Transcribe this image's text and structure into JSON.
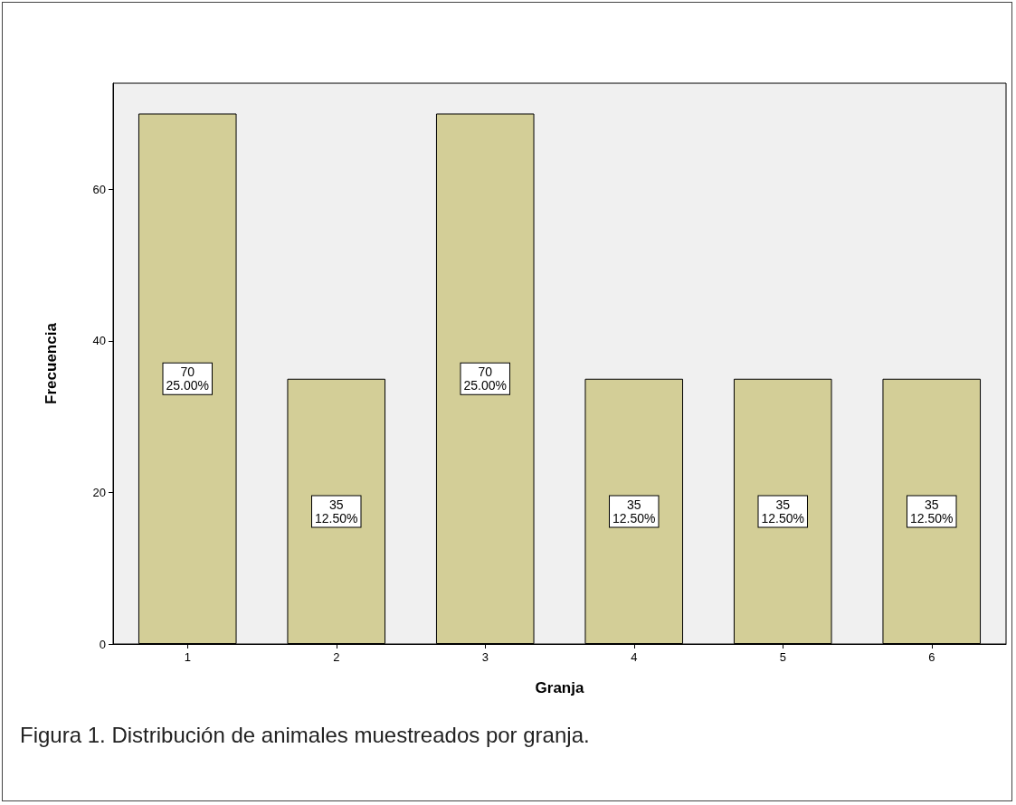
{
  "chart_data": {
    "type": "bar",
    "xlabel": "Granja",
    "ylabel": "Frecuencia",
    "categories": [
      "1",
      "2",
      "3",
      "4",
      "5",
      "6"
    ],
    "values": [
      70,
      35,
      70,
      35,
      35,
      35
    ],
    "value_labels": [
      "70\n25.00%",
      "35\n12.50%",
      "70\n25.00%",
      "35\n12.50%",
      "35\n12.50%",
      "35\n12.50%"
    ],
    "color": "#d3ce97",
    "ylim": [
      0,
      74
    ],
    "yticks": [
      0,
      20,
      40,
      60
    ],
    "grid": false,
    "annotations": [
      "Figura 1. Distribución de animales muestreados por granja."
    ]
  }
}
